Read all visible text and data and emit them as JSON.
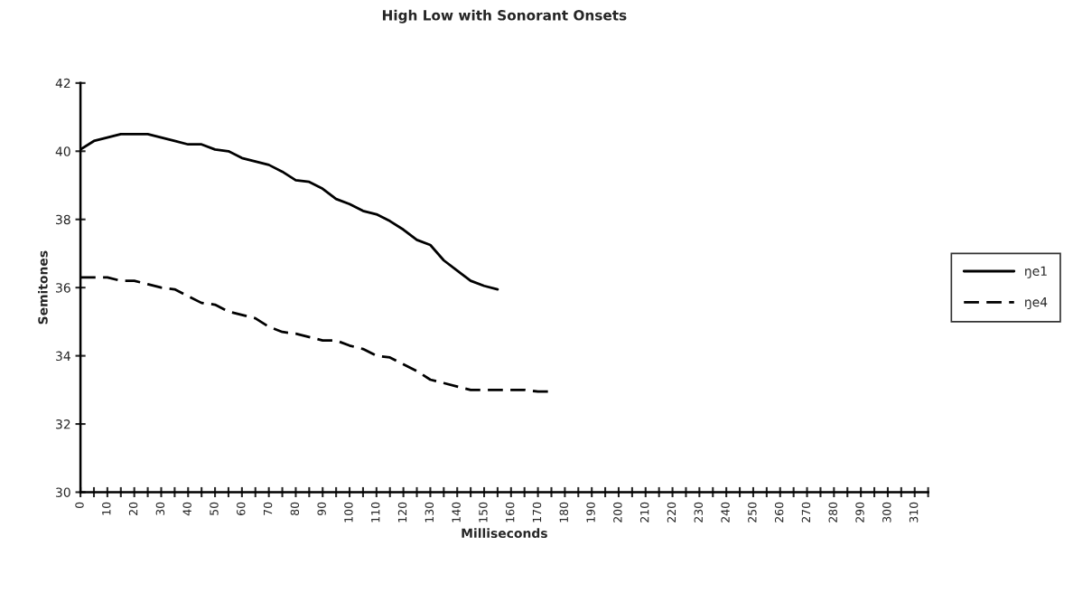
{
  "chart_data": {
    "type": "line",
    "title": "High Low with Sonorant Onsets",
    "xlabel": "Milliseconds",
    "ylabel": "Semitones",
    "xlim": [
      0,
      315
    ],
    "ylim": [
      30,
      42
    ],
    "yticks": [
      30,
      32,
      34,
      36,
      38,
      40,
      42
    ],
    "xticks": [
      0,
      {
        "value": 5,
        "label": null
      },
      10,
      {
        "value": 15,
        "label": null
      },
      20,
      {
        "value": 25,
        "label": null
      },
      30,
      {
        "value": 35,
        "label": null
      },
      40,
      {
        "value": 45,
        "label": null
      },
      50,
      {
        "value": 55,
        "label": null
      },
      60,
      {
        "value": 65,
        "label": null
      },
      70,
      {
        "value": 75,
        "label": null
      },
      80,
      {
        "value": 85,
        "label": null
      },
      90,
      {
        "value": 95,
        "label": null
      },
      100,
      {
        "value": 105,
        "label": null
      },
      110,
      {
        "value": 115,
        "label": null
      },
      120,
      {
        "value": 125,
        "label": null
      },
      130,
      {
        "value": 135,
        "label": null
      },
      140,
      {
        "value": 145,
        "label": null
      },
      150,
      {
        "value": 155,
        "label": null
      },
      160,
      {
        "value": 165,
        "label": null
      },
      170,
      {
        "value": 175,
        "label": null
      },
      180,
      {
        "value": 185,
        "label": null
      },
      190,
      {
        "value": 195,
        "label": null
      },
      200,
      {
        "value": 205,
        "label": null
      },
      210,
      {
        "value": 215,
        "label": null
      },
      220,
      {
        "value": 225,
        "label": null
      },
      230,
      {
        "value": 235,
        "label": null
      },
      240,
      {
        "value": 245,
        "label": null
      },
      250,
      {
        "value": 255,
        "label": null
      },
      260,
      {
        "value": 265,
        "label": null
      },
      270,
      {
        "value": 275,
        "label": null
      },
      280,
      {
        "value": 285,
        "label": null
      },
      290,
      {
        "value": 295,
        "label": null
      },
      300,
      {
        "value": 305,
        "label": null
      },
      310,
      {
        "value": 315,
        "label": null
      }
    ],
    "grid": false,
    "legend": "right",
    "marker": "none",
    "series": [
      {
        "name": "ŋe1",
        "color": "#000000",
        "line_style": "solid",
        "x": [
          0,
          5,
          10,
          15,
          20,
          25,
          30,
          35,
          40,
          45,
          50,
          55,
          60,
          65,
          70,
          75,
          80,
          85,
          90,
          95,
          100,
          105,
          110,
          115,
          120,
          125,
          130,
          135,
          140,
          145,
          150,
          155
        ],
        "values": [
          40.05,
          40.3,
          40.4,
          40.5,
          40.5,
          40.5,
          40.4,
          40.3,
          40.2,
          40.2,
          40.05,
          40.0,
          39.8,
          39.7,
          39.6,
          39.4,
          39.15,
          39.1,
          38.9,
          38.6,
          38.45,
          38.25,
          38.15,
          37.95,
          37.7,
          37.4,
          37.25,
          36.8,
          36.5,
          36.2,
          36.05,
          35.95
        ]
      },
      {
        "name": "ŋe4",
        "color": "#000000",
        "line_style": "dashed",
        "x": [
          0,
          5,
          10,
          15,
          20,
          25,
          30,
          35,
          40,
          45,
          50,
          55,
          60,
          65,
          70,
          75,
          80,
          85,
          90,
          95,
          100,
          105,
          110,
          115,
          120,
          125,
          130,
          135,
          140,
          145,
          150,
          155,
          160,
          165,
          170,
          175
        ],
        "values": [
          36.3,
          36.3,
          36.3,
          36.2,
          36.2,
          36.1,
          36.0,
          35.95,
          35.75,
          35.55,
          35.5,
          35.3,
          35.2,
          35.1,
          34.85,
          34.7,
          34.65,
          34.55,
          34.45,
          34.45,
          34.3,
          34.2,
          34.0,
          33.95,
          33.75,
          33.55,
          33.3,
          33.2,
          33.1,
          33.0,
          33.0,
          33.0,
          33.0,
          33.0,
          32.95,
          32.95
        ]
      }
    ]
  }
}
